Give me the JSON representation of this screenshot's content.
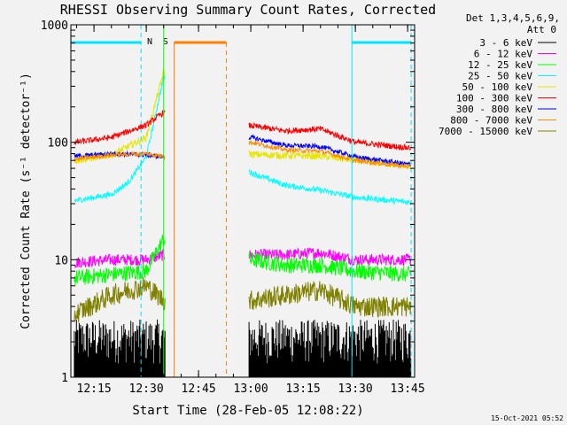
{
  "chart_data": {
    "type": "line",
    "title": "RHESSI Observing Summary Count Rates, Corrected",
    "xlabel": "Start Time (28-Feb-05 12:08:22)",
    "ylabel": "Corrected Count Rate (s⁻¹ detector⁻¹)",
    "y_scale": "log",
    "ylim": [
      1,
      1000
    ],
    "xlim": [
      "12:08:22",
      "13:47:00"
    ],
    "x_ticks": [
      "12:15",
      "12:30",
      "12:45",
      "13:00",
      "13:15",
      "13:30",
      "13:45"
    ],
    "y_ticks": [
      "1",
      "10",
      "100",
      "1000"
    ],
    "legend_header": [
      "Det 1,3,4,5,6,9,",
      "Att 0"
    ],
    "legend_position": "right",
    "timestamp": "15-Oct-2021 05:52",
    "gap": [
      "12:35:30",
      "12:59:30"
    ],
    "annotations": [
      {
        "label": "N",
        "color": "#00e5ff",
        "text_at": "12:31",
        "spans": [
          [
            "12:08:22",
            "12:28:30"
          ],
          [
            "13:29:00",
            "13:46:00"
          ]
        ]
      },
      {
        "label": "S",
        "color": "#ff7f00",
        "text_at": "12:35:30",
        "spans": [
          [
            "12:38:00",
            "12:53:00"
          ]
        ]
      }
    ],
    "series": [
      {
        "name": "3 - 6 keV",
        "color": "#000000",
        "x": [
          "12:10",
          "12:20",
          "12:30",
          "12:35",
          "13:00",
          "13:10",
          "13:20",
          "13:30",
          "13:45"
        ],
        "values": [
          1.8,
          1.8,
          1.7,
          1.7,
          1.8,
          1.7,
          1.6,
          1.7,
          1.6
        ]
      },
      {
        "name": "6 - 12 keV",
        "color": "#ff00ff",
        "x": [
          "12:10",
          "12:20",
          "12:30",
          "12:35",
          "13:00",
          "13:10",
          "13:20",
          "13:30",
          "13:45"
        ],
        "values": [
          9.5,
          10,
          10,
          11,
          11,
          11,
          11.5,
          10,
          10
        ]
      },
      {
        "name": "12 - 25 keV",
        "color": "#00ff00",
        "x": [
          "12:10",
          "12:20",
          "12:30",
          "12:35",
          "13:00",
          "13:10",
          "13:20",
          "13:30",
          "13:45"
        ],
        "values": [
          7,
          7.5,
          8,
          15,
          10,
          9,
          9,
          8,
          7.5
        ]
      },
      {
        "name": "25 - 50 keV",
        "color": "#00ffff",
        "x": [
          "12:10",
          "12:20",
          "12:25",
          "12:30",
          "12:35",
          "13:00",
          "13:10",
          "13:20",
          "13:30",
          "13:45"
        ],
        "values": [
          32,
          36,
          46,
          75,
          360,
          55,
          43,
          39,
          34,
          31
        ]
      },
      {
        "name": "50 - 100 keV",
        "color": "#e6e600",
        "x": [
          "12:10",
          "12:20",
          "12:30",
          "12:35",
          "13:00",
          "13:10",
          "13:20",
          "13:30",
          "13:45"
        ],
        "values": [
          70,
          78,
          110,
          400,
          79,
          77,
          76,
          70,
          63
        ]
      },
      {
        "name": "100 - 300 keV",
        "color": "#ff0000",
        "x": [
          "12:10",
          "12:20",
          "12:30",
          "12:35",
          "13:00",
          "13:10",
          "13:20",
          "13:30",
          "13:45"
        ],
        "values": [
          100,
          110,
          140,
          180,
          138,
          125,
          130,
          100,
          90
        ]
      },
      {
        "name": "300 - 800 keV",
        "color": "#0000ff",
        "x": [
          "12:10",
          "12:20",
          "12:30",
          "12:35",
          "13:00",
          "13:10",
          "13:20",
          "13:30",
          "13:45"
        ],
        "values": [
          76,
          80,
          78,
          75,
          110,
          94,
          92,
          75,
          65
        ]
      },
      {
        "name": "800 - 7000 keV",
        "color": "#ff8c00",
        "x": [
          "12:10",
          "12:20",
          "12:30",
          "12:35",
          "13:00",
          "13:10",
          "13:20",
          "13:30",
          "13:45"
        ],
        "values": [
          72,
          78,
          80,
          76,
          100,
          86,
          84,
          70,
          62
        ]
      },
      {
        "name": "7000 - 15000 keV",
        "color": "#808000",
        "x": [
          "12:10",
          "12:20",
          "12:30",
          "12:35",
          "13:00",
          "13:10",
          "13:20",
          "13:30",
          "13:45"
        ],
        "values": [
          3.5,
          5,
          6,
          4.5,
          4.5,
          5,
          5.5,
          4,
          4
        ]
      }
    ]
  }
}
